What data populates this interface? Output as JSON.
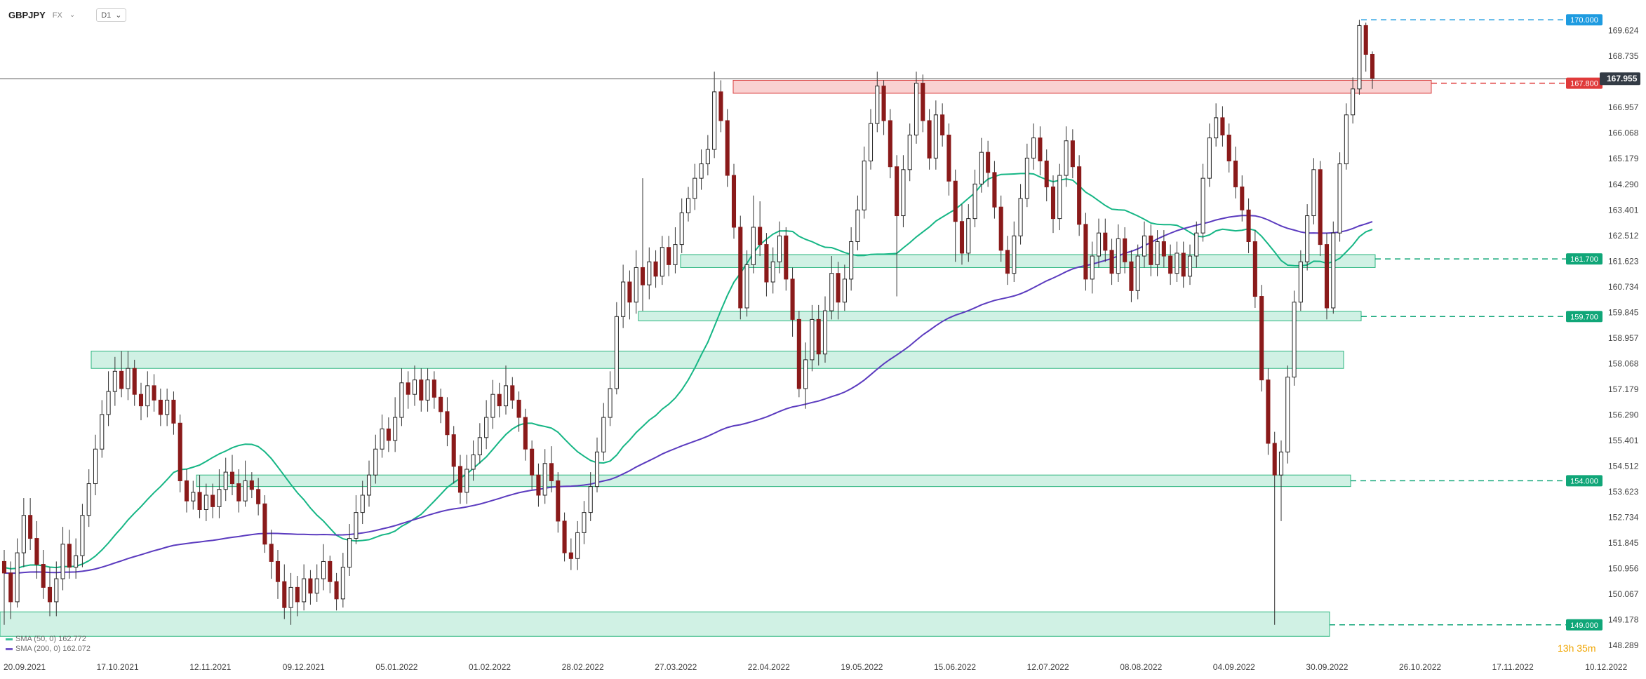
{
  "header": {
    "symbol": "GBPJPY",
    "exchange": "FX",
    "timeframe": "D1",
    "exchange_caret": "⌄",
    "timeframe_caret": "⌄"
  },
  "legend": {
    "sma50": {
      "label": "SMA (50, 0) 162.772",
      "color": "#16b685"
    },
    "sma200": {
      "label": "SMA (200, 0) 162.072",
      "color": "#5b3bbf"
    }
  },
  "countdown": "13h 35m",
  "chart_data": {
    "type": "candlestick",
    "y_range": [
      148.289,
      170.5
    ],
    "y_ticks": [
      "169.624",
      "168.735",
      "167.955",
      "166.957",
      "166.068",
      "165.179",
      "164.290",
      "163.401",
      "162.512",
      "161.623",
      "160.734",
      "159.845",
      "158.957",
      "158.068",
      "157.179",
      "156.290",
      "155.401",
      "154.512",
      "153.623",
      "152.734",
      "151.845",
      "150.956",
      "150.067",
      "149.178",
      "148.289"
    ],
    "x_ticks": [
      "20.09.2021",
      "17.10.2021",
      "12.11.2021",
      "09.12.2021",
      "05.01.2022",
      "01.02.2022",
      "28.02.2022",
      "27.03.2022",
      "22.04.2022",
      "19.05.2022",
      "15.06.2022",
      "12.07.2022",
      "08.08.2022",
      "04.09.2022",
      "30.09.2022",
      "26.10.2022",
      "17.11.2022",
      "10.12.2022"
    ],
    "current_price": 167.955,
    "levels": [
      {
        "value": 170.0,
        "label": "170.000",
        "color": "#1e9be0"
      },
      {
        "value": 167.8,
        "label": "167.800",
        "color": "#e03a3a"
      },
      {
        "value": 161.7,
        "label": "161.700",
        "color": "#10a678"
      },
      {
        "value": 159.7,
        "label": "159.700",
        "color": "#10a678"
      },
      {
        "value": 154.0,
        "label": "154.000",
        "color": "#10a678"
      },
      {
        "value": 149.0,
        "label": "149.000",
        "color": "#10a678"
      }
    ],
    "zones": [
      {
        "from": "22.04.2022",
        "to": "30.09.2022",
        "low": 167.45,
        "high": 167.9,
        "color": "red"
      },
      {
        "from": "27.03.2022",
        "to": "30.09.2022",
        "low": 161.4,
        "high": 161.85,
        "color": "green"
      },
      {
        "from": "15.03.2022",
        "to": "30.09.2022",
        "low": 159.55,
        "high": 159.88,
        "color": "green"
      },
      {
        "from": "05.10.2021",
        "to": "30.09.2022",
        "low": 157.9,
        "high": 158.5,
        "color": "green"
      },
      {
        "from": "30.10.2021",
        "to": "30.09.2022",
        "low": 153.8,
        "high": 154.2,
        "color": "green"
      },
      {
        "from": "20.09.2021",
        "to": "30.09.2022",
        "low": 148.6,
        "high": 149.45,
        "color": "green"
      }
    ],
    "candles": [
      [
        151.2,
        150.8,
        151.6,
        149.0
      ],
      [
        150.8,
        149.8,
        151.2,
        149.2
      ],
      [
        149.8,
        151.5,
        152.0,
        149.6
      ],
      [
        151.5,
        152.8,
        153.4,
        151.0
      ],
      [
        152.8,
        152.0,
        153.4,
        151.6
      ],
      [
        152.0,
        151.1,
        152.6,
        150.6
      ],
      [
        151.1,
        150.3,
        151.6,
        149.9
      ],
      [
        150.3,
        149.8,
        151.0,
        149.3
      ],
      [
        149.8,
        150.6,
        151.2,
        149.3
      ],
      [
        150.6,
        151.8,
        152.4,
        150.2
      ],
      [
        151.8,
        151.0,
        152.3,
        150.6
      ],
      [
        151.0,
        151.4,
        152.0,
        150.6
      ],
      [
        151.4,
        152.8,
        153.2,
        151.0
      ],
      [
        152.8,
        153.9,
        154.4,
        152.4
      ],
      [
        153.9,
        155.1,
        155.6,
        153.5
      ],
      [
        155.1,
        156.3,
        156.8,
        154.8
      ],
      [
        156.3,
        157.1,
        157.8,
        155.9
      ],
      [
        157.1,
        157.8,
        158.3,
        156.6
      ],
      [
        157.8,
        157.2,
        158.5,
        156.9
      ],
      [
        157.2,
        157.9,
        158.5,
        156.8
      ],
      [
        157.9,
        157.0,
        158.2,
        156.6
      ],
      [
        157.0,
        156.6,
        157.4,
        156.1
      ],
      [
        156.6,
        157.3,
        157.8,
        156.2
      ],
      [
        157.3,
        156.8,
        157.7,
        156.4
      ],
      [
        156.8,
        156.3,
        157.2,
        155.9
      ],
      [
        156.3,
        156.8,
        157.2,
        155.9
      ],
      [
        156.8,
        156.0,
        157.1,
        155.6
      ],
      [
        156.0,
        154.0,
        156.3,
        153.6
      ],
      [
        154.0,
        153.3,
        154.4,
        152.9
      ],
      [
        153.3,
        153.6,
        154.0,
        153.0
      ],
      [
        153.6,
        153.0,
        154.2,
        152.7
      ],
      [
        153.0,
        153.5,
        153.9,
        152.6
      ],
      [
        153.5,
        153.1,
        153.9,
        152.7
      ],
      [
        153.1,
        153.7,
        154.4,
        152.7
      ],
      [
        153.7,
        154.3,
        154.8,
        153.3
      ],
      [
        154.3,
        153.9,
        154.9,
        153.5
      ],
      [
        153.9,
        153.3,
        154.4,
        152.9
      ],
      [
        153.3,
        154.0,
        154.7,
        153.1
      ],
      [
        154.0,
        153.7,
        154.3,
        153.4
      ],
      [
        153.7,
        153.2,
        154.1,
        152.8
      ],
      [
        153.2,
        151.8,
        153.5,
        151.5
      ],
      [
        151.8,
        151.2,
        152.3,
        150.6
      ],
      [
        151.2,
        150.5,
        151.6,
        149.9
      ],
      [
        150.5,
        149.6,
        151.1,
        149.2
      ],
      [
        149.6,
        150.3,
        150.8,
        149.0
      ],
      [
        150.3,
        149.8,
        150.7,
        149.3
      ],
      [
        149.8,
        150.6,
        151.1,
        149.5
      ],
      [
        150.6,
        150.1,
        150.9,
        149.7
      ],
      [
        150.1,
        150.6,
        151.1,
        149.8
      ],
      [
        150.6,
        151.2,
        151.8,
        150.2
      ],
      [
        151.2,
        150.5,
        151.4,
        150.1
      ],
      [
        150.5,
        149.9,
        150.8,
        149.5
      ],
      [
        149.9,
        151.0,
        151.5,
        149.6
      ],
      [
        151.0,
        152.0,
        152.5,
        150.7
      ],
      [
        152.0,
        152.9,
        153.5,
        151.8
      ],
      [
        152.9,
        153.5,
        154.0,
        152.5
      ],
      [
        153.5,
        154.2,
        154.7,
        153.1
      ],
      [
        154.2,
        155.1,
        155.6,
        153.9
      ],
      [
        155.1,
        155.8,
        156.3,
        154.8
      ],
      [
        155.8,
        155.4,
        156.2,
        155.0
      ],
      [
        155.4,
        156.2,
        156.9,
        155.0
      ],
      [
        156.2,
        157.4,
        157.9,
        155.9
      ],
      [
        157.4,
        157.0,
        157.8,
        156.5
      ],
      [
        157.0,
        157.5,
        158.0,
        156.6
      ],
      [
        157.5,
        156.8,
        157.9,
        156.4
      ],
      [
        156.8,
        157.5,
        157.9,
        156.4
      ],
      [
        157.5,
        156.9,
        157.8,
        156.5
      ],
      [
        156.9,
        156.4,
        157.2,
        156.0
      ],
      [
        156.4,
        155.6,
        156.9,
        155.2
      ],
      [
        155.6,
        154.5,
        155.9,
        153.9
      ],
      [
        154.5,
        153.6,
        154.9,
        153.2
      ],
      [
        153.6,
        154.4,
        154.9,
        153.2
      ],
      [
        154.4,
        154.9,
        155.4,
        154.0
      ],
      [
        154.9,
        155.5,
        156.0,
        154.6
      ],
      [
        155.5,
        156.2,
        156.8,
        155.1
      ],
      [
        156.2,
        157.0,
        157.5,
        155.8
      ],
      [
        157.0,
        156.6,
        157.4,
        156.2
      ],
      [
        156.6,
        157.3,
        158.0,
        156.3
      ],
      [
        157.3,
        156.8,
        157.6,
        156.5
      ],
      [
        156.8,
        156.2,
        157.1,
        155.7
      ],
      [
        156.2,
        155.1,
        156.5,
        154.7
      ],
      [
        155.1,
        154.2,
        155.4,
        153.7
      ],
      [
        154.2,
        153.5,
        154.6,
        153.1
      ],
      [
        153.5,
        154.6,
        155.1,
        153.2
      ],
      [
        154.6,
        154.0,
        155.2,
        153.6
      ],
      [
        154.0,
        152.6,
        154.3,
        152.2
      ],
      [
        152.6,
        151.5,
        152.9,
        151.2
      ],
      [
        151.5,
        151.3,
        152.0,
        150.9
      ],
      [
        151.3,
        152.2,
        152.6,
        150.9
      ],
      [
        152.2,
        152.9,
        153.3,
        151.8
      ],
      [
        152.9,
        153.8,
        154.3,
        152.6
      ],
      [
        153.8,
        155.0,
        155.5,
        153.6
      ],
      [
        155.0,
        156.2,
        156.7,
        154.7
      ],
      [
        156.2,
        157.2,
        157.8,
        155.9
      ],
      [
        157.2,
        159.7,
        160.2,
        157.0
      ],
      [
        159.7,
        160.9,
        161.5,
        159.3
      ],
      [
        160.9,
        160.2,
        161.3,
        159.6
      ],
      [
        160.2,
        161.4,
        162.0,
        159.8
      ],
      [
        161.4,
        160.8,
        164.5,
        159.9
      ],
      [
        160.8,
        161.6,
        162.1,
        160.3
      ],
      [
        161.6,
        161.1,
        162.0,
        160.7
      ],
      [
        161.1,
        162.1,
        162.5,
        160.8
      ],
      [
        162.1,
        161.5,
        162.5,
        161.1
      ],
      [
        161.5,
        162.2,
        162.8,
        161.2
      ],
      [
        162.2,
        163.3,
        163.8,
        161.9
      ],
      [
        163.3,
        163.8,
        164.2,
        163.0
      ],
      [
        163.8,
        164.5,
        165.0,
        163.4
      ],
      [
        164.5,
        165.0,
        165.5,
        164.1
      ],
      [
        165.0,
        165.5,
        166.0,
        164.6
      ],
      [
        165.5,
        167.5,
        168.2,
        165.2
      ],
      [
        167.5,
        166.5,
        167.9,
        166.1
      ],
      [
        166.5,
        164.6,
        166.9,
        164.2
      ],
      [
        164.6,
        162.8,
        165.0,
        162.4
      ],
      [
        162.8,
        160.0,
        163.2,
        159.6
      ],
      [
        160.0,
        161.5,
        162.0,
        159.7
      ],
      [
        161.5,
        162.8,
        163.9,
        161.2
      ],
      [
        162.8,
        162.2,
        163.7,
        161.8
      ],
      [
        162.2,
        160.9,
        162.6,
        160.4
      ],
      [
        160.9,
        161.6,
        162.1,
        160.5
      ],
      [
        161.6,
        162.5,
        163.0,
        161.2
      ],
      [
        162.5,
        161.0,
        162.8,
        160.6
      ],
      [
        161.0,
        159.6,
        161.4,
        159.0
      ],
      [
        159.6,
        157.2,
        159.9,
        156.9
      ],
      [
        157.2,
        158.2,
        158.8,
        156.5
      ],
      [
        158.2,
        159.6,
        160.1,
        157.8
      ],
      [
        159.6,
        158.4,
        160.1,
        158.0
      ],
      [
        158.4,
        159.9,
        160.4,
        158.1
      ],
      [
        159.9,
        161.2,
        161.8,
        159.6
      ],
      [
        161.2,
        160.2,
        161.6,
        159.6
      ],
      [
        160.2,
        161.0,
        161.5,
        159.9
      ],
      [
        161.0,
        162.3,
        162.8,
        160.6
      ],
      [
        162.3,
        163.4,
        163.9,
        162.0
      ],
      [
        163.4,
        165.1,
        165.6,
        163.1
      ],
      [
        165.1,
        166.4,
        166.9,
        164.8
      ],
      [
        166.4,
        167.7,
        168.2,
        166.1
      ],
      [
        167.7,
        166.5,
        167.9,
        166.0
      ],
      [
        166.5,
        164.9,
        166.9,
        164.5
      ],
      [
        164.9,
        163.2,
        165.3,
        160.4
      ],
      [
        163.2,
        164.8,
        165.3,
        162.8
      ],
      [
        164.8,
        166.0,
        166.4,
        164.4
      ],
      [
        166.0,
        167.8,
        168.2,
        165.7
      ],
      [
        167.8,
        166.5,
        168.1,
        166.1
      ],
      [
        166.5,
        165.2,
        166.9,
        164.8
      ],
      [
        165.2,
        166.7,
        167.2,
        164.8
      ],
      [
        166.7,
        166.0,
        167.1,
        165.6
      ],
      [
        166.0,
        164.4,
        166.4,
        163.9
      ],
      [
        164.4,
        163.0,
        164.8,
        161.6
      ],
      [
        163.0,
        161.9,
        163.6,
        161.5
      ],
      [
        161.9,
        163.1,
        163.6,
        161.6
      ],
      [
        163.1,
        164.3,
        164.8,
        162.8
      ],
      [
        164.3,
        165.4,
        165.9,
        164.0
      ],
      [
        165.4,
        164.7,
        165.8,
        164.2
      ],
      [
        164.7,
        163.5,
        165.1,
        163.1
      ],
      [
        163.5,
        162.0,
        163.9,
        161.6
      ],
      [
        162.0,
        161.2,
        162.5,
        160.8
      ],
      [
        161.2,
        162.5,
        163.0,
        160.9
      ],
      [
        162.5,
        163.8,
        164.3,
        162.2
      ],
      [
        163.8,
        165.2,
        165.7,
        163.5
      ],
      [
        165.2,
        165.9,
        166.4,
        164.8
      ],
      [
        165.9,
        165.1,
        166.3,
        164.6
      ],
      [
        165.1,
        164.2,
        165.5,
        163.7
      ],
      [
        164.2,
        163.1,
        164.6,
        162.6
      ],
      [
        163.1,
        164.6,
        165.0,
        162.7
      ],
      [
        164.6,
        165.8,
        166.3,
        164.2
      ],
      [
        165.8,
        164.9,
        166.2,
        164.5
      ],
      [
        164.9,
        162.9,
        165.3,
        162.5
      ],
      [
        162.9,
        161.0,
        163.3,
        160.6
      ],
      [
        161.0,
        161.8,
        162.3,
        160.5
      ],
      [
        161.8,
        162.6,
        163.1,
        161.4
      ],
      [
        162.6,
        162.0,
        163.1,
        161.6
      ],
      [
        162.0,
        161.2,
        162.4,
        160.8
      ],
      [
        161.2,
        162.4,
        162.9,
        160.9
      ],
      [
        162.4,
        161.6,
        162.8,
        161.2
      ],
      [
        161.6,
        160.6,
        162.0,
        160.2
      ],
      [
        160.6,
        161.8,
        162.2,
        160.3
      ],
      [
        161.8,
        162.5,
        163.0,
        161.4
      ],
      [
        162.5,
        161.5,
        162.9,
        161.1
      ],
      [
        161.5,
        162.3,
        162.7,
        161.1
      ],
      [
        162.3,
        161.8,
        162.7,
        161.4
      ],
      [
        161.8,
        161.2,
        162.2,
        160.8
      ],
      [
        161.2,
        161.9,
        162.3,
        160.9
      ],
      [
        161.9,
        161.1,
        162.3,
        160.7
      ],
      [
        161.1,
        161.8,
        162.2,
        160.8
      ],
      [
        161.8,
        162.6,
        163.0,
        161.4
      ],
      [
        162.6,
        164.5,
        165.0,
        162.3
      ],
      [
        164.5,
        165.9,
        166.4,
        164.2
      ],
      [
        165.9,
        166.6,
        167.1,
        165.6
      ],
      [
        166.6,
        166.0,
        167.0,
        165.6
      ],
      [
        166.0,
        165.1,
        166.4,
        164.7
      ],
      [
        165.1,
        164.2,
        165.6,
        163.8
      ],
      [
        164.2,
        163.4,
        164.6,
        163.0
      ],
      [
        163.4,
        162.3,
        163.8,
        161.9
      ],
      [
        162.3,
        160.4,
        162.7,
        160.0
      ],
      [
        160.4,
        157.5,
        160.8,
        157.1
      ],
      [
        157.5,
        155.3,
        157.9,
        154.9
      ],
      [
        155.3,
        154.2,
        155.7,
        149.0
      ],
      [
        154.2,
        155.0,
        155.4,
        152.6
      ],
      [
        155.0,
        157.6,
        158.0,
        154.6
      ],
      [
        157.6,
        160.2,
        160.6,
        157.3
      ],
      [
        160.2,
        161.6,
        162.0,
        159.9
      ],
      [
        161.6,
        163.2,
        163.6,
        161.3
      ],
      [
        163.2,
        164.8,
        165.2,
        162.9
      ],
      [
        164.8,
        162.2,
        165.1,
        161.8
      ],
      [
        162.2,
        160.0,
        162.6,
        159.6
      ],
      [
        160.0,
        162.6,
        163.0,
        159.8
      ],
      [
        162.6,
        165.0,
        165.4,
        162.3
      ],
      [
        165.0,
        166.7,
        167.1,
        164.8
      ],
      [
        166.7,
        167.6,
        168.0,
        166.4
      ],
      [
        167.6,
        169.8,
        170.0,
        167.4
      ],
      [
        169.8,
        168.8,
        169.9,
        168.2
      ],
      [
        168.8,
        167.96,
        168.9,
        167.6
      ]
    ]
  }
}
